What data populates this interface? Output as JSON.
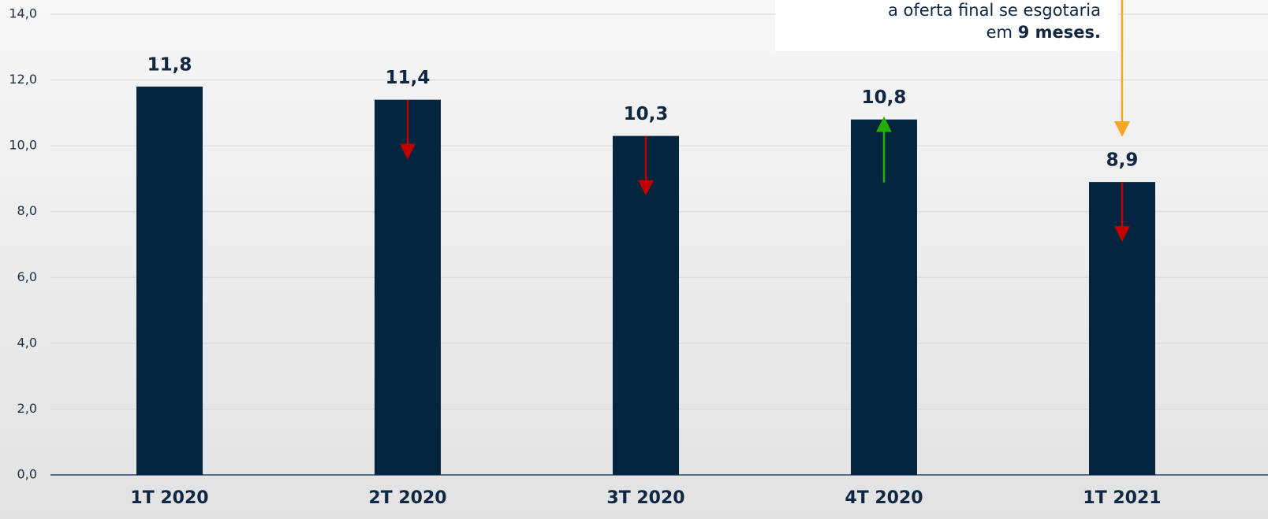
{
  "chart_data": {
    "type": "bar",
    "categories": [
      "1T 2020",
      "2T 2020",
      "3T 2020",
      "4T 2020",
      "1T 2021"
    ],
    "values": [
      11.8,
      11.4,
      10.3,
      10.8,
      8.9
    ],
    "value_labels": [
      "11,8",
      "11,4",
      "10,3",
      "10,8",
      "8,9"
    ],
    "color": "#03253f",
    "ylim": [
      0,
      14
    ],
    "yticks": [
      {
        "value": 0,
        "label": "0,0"
      },
      {
        "value": 2,
        "label": "2,0"
      },
      {
        "value": 4,
        "label": "4,0"
      },
      {
        "value": 6,
        "label": "6,0"
      },
      {
        "value": 8,
        "label": "8,0"
      },
      {
        "value": 10,
        "label": "10,0"
      },
      {
        "value": 12,
        "label": "12,0"
      },
      {
        "value": 14,
        "label": "14,0"
      }
    ],
    "grid": true,
    "annotation": [
      "a oferta final se esgotaria",
      "em",
      "9 meses."
    ]
  }
}
